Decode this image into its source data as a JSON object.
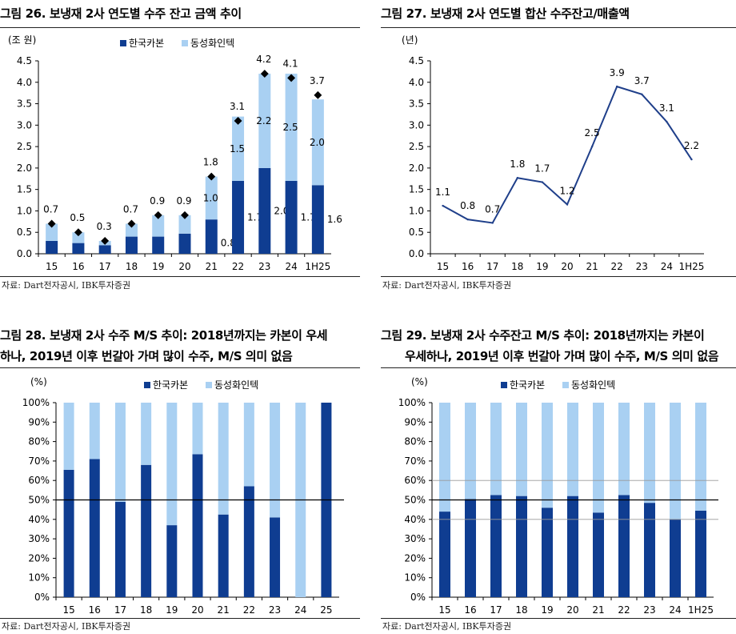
{
  "colors": {
    "dark": "#0f3d91",
    "light": "#a9d0f2",
    "line": "#1f3f8a",
    "marker": "#000000",
    "grid": "#999999"
  },
  "panels": {
    "p26": {
      "title": "그림 26. 보냉재 2사 연도별 수주 잔고 금액 추이",
      "source": "자료: Dart전자공시, IBK투자증권"
    },
    "p27": {
      "title": "그림 27. 보냉재 2사 연도별 합산 수주잔고/매출액",
      "source": "자료: Dart전자공시, IBK투자증권"
    },
    "p28": {
      "title_line1": "그림 28. 보냉재 2사 수주 M/S 추이: 2018년까지는 카본이 우세",
      "title_line2": "하나, 2019년 이후 번갈아 가며 많이 수주, M/S 의미 없음",
      "source": "자료: Dart전자공시, IBK투자증권"
    },
    "p29": {
      "title_line1": "그림 29. 보냉재 2사 수주잔고 M/S 추이: 2018년까지는 카본이",
      "title_line2": "우세하나, 2019년 이후 번갈아 가며 많이 수주, M/S 의미 없음",
      "source": "자료: Dart전자공시, IBK투자증권"
    }
  },
  "chart_data": [
    {
      "id": "c26",
      "type": "bar",
      "stacked": true,
      "unit_label": "(조 원)",
      "categories": [
        "15",
        "16",
        "17",
        "18",
        "19",
        "20",
        "21",
        "22",
        "23",
        "24",
        "1H25"
      ],
      "series": [
        {
          "name": "한국카본",
          "values": [
            0.3,
            0.25,
            0.2,
            0.4,
            0.4,
            0.47,
            0.8,
            1.7,
            2.0,
            1.7,
            1.6
          ],
          "labels": [
            null,
            null,
            null,
            null,
            null,
            null,
            "0.8",
            "1.7",
            "2.0",
            "1.7",
            "1.6"
          ]
        },
        {
          "name": "동성화인텍",
          "values": [
            0.4,
            0.25,
            0.1,
            0.3,
            0.5,
            0.43,
            1.0,
            1.5,
            2.2,
            2.5,
            2.0
          ],
          "labels": [
            null,
            null,
            null,
            null,
            null,
            null,
            "1.0",
            "1.5",
            "2.2",
            "2.5",
            "2.0"
          ]
        }
      ],
      "totals": [
        0.7,
        0.5,
        0.3,
        0.7,
        0.9,
        0.9,
        1.8,
        3.1,
        4.2,
        4.1,
        3.7
      ],
      "total_labels": [
        "0.7",
        "0.5",
        "0.3",
        "0.7",
        "0.9",
        "0.9",
        "1.8",
        "3.1",
        "4.2",
        "4.1",
        "3.7"
      ],
      "ylim": [
        0,
        4.5
      ],
      "yticks": [
        "0.0",
        "0.5",
        "1.0",
        "1.5",
        "2.0",
        "2.5",
        "3.0",
        "3.5",
        "4.0",
        "4.5"
      ],
      "legend": "top"
    },
    {
      "id": "c27",
      "type": "line",
      "unit_label": "(년)",
      "categories": [
        "15",
        "16",
        "17",
        "18",
        "19",
        "20",
        "21",
        "22",
        "23",
        "24",
        "1H25"
      ],
      "values": [
        1.12,
        0.8,
        0.72,
        1.77,
        1.67,
        1.15,
        2.5,
        3.9,
        3.72,
        3.08,
        2.2
      ],
      "labels": [
        "1.1",
        "0.8",
        "0.7",
        "1.8",
        "1.7",
        "1.2",
        "2.5",
        "3.9",
        "3.7",
        "3.1",
        "2.2"
      ],
      "ylim": [
        0,
        4.5
      ],
      "yticks": [
        "0.0",
        "0.5",
        "1.0",
        "1.5",
        "2.0",
        "2.5",
        "3.0",
        "3.5",
        "4.0",
        "4.5"
      ]
    },
    {
      "id": "c28",
      "type": "bar",
      "stacked": true,
      "unit_label": "(%)",
      "categories": [
        "15",
        "16",
        "17",
        "18",
        "19",
        "20",
        "21",
        "22",
        "23",
        "24",
        "25"
      ],
      "series": [
        {
          "name": "한국카본",
          "values": [
            65.5,
            71,
            49,
            68,
            37,
            73.5,
            42.5,
            57,
            41,
            0,
            100
          ]
        },
        {
          "name": "동성화인텍",
          "values": [
            34.5,
            29,
            51,
            32,
            63,
            26.5,
            57.5,
            43,
            59,
            100,
            0
          ]
        }
      ],
      "ylim": [
        0,
        100
      ],
      "yticks": [
        "0%",
        "10%",
        "20%",
        "30%",
        "40%",
        "50%",
        "60%",
        "70%",
        "80%",
        "90%",
        "100%"
      ],
      "reference_lines": [
        50
      ],
      "legend": "top"
    },
    {
      "id": "c29",
      "type": "bar",
      "stacked": true,
      "unit_label": "(%)",
      "categories": [
        "15",
        "16",
        "17",
        "18",
        "19",
        "20",
        "21",
        "22",
        "23",
        "24",
        "1H25"
      ],
      "series": [
        {
          "name": "한국카본",
          "values": [
            44,
            50.5,
            52.5,
            52,
            46,
            52,
            43.5,
            52.5,
            48.5,
            40,
            44.5
          ]
        },
        {
          "name": "동성화인텍",
          "values": [
            56,
            49.5,
            47.5,
            48,
            54,
            48,
            56.5,
            47.5,
            51.5,
            60,
            55.5
          ]
        }
      ],
      "ylim": [
        0,
        100
      ],
      "yticks": [
        "0%",
        "10%",
        "20%",
        "30%",
        "40%",
        "50%",
        "60%",
        "70%",
        "80%",
        "90%",
        "100%"
      ],
      "reference_lines": [
        40,
        50,
        60
      ],
      "legend": "top"
    }
  ]
}
